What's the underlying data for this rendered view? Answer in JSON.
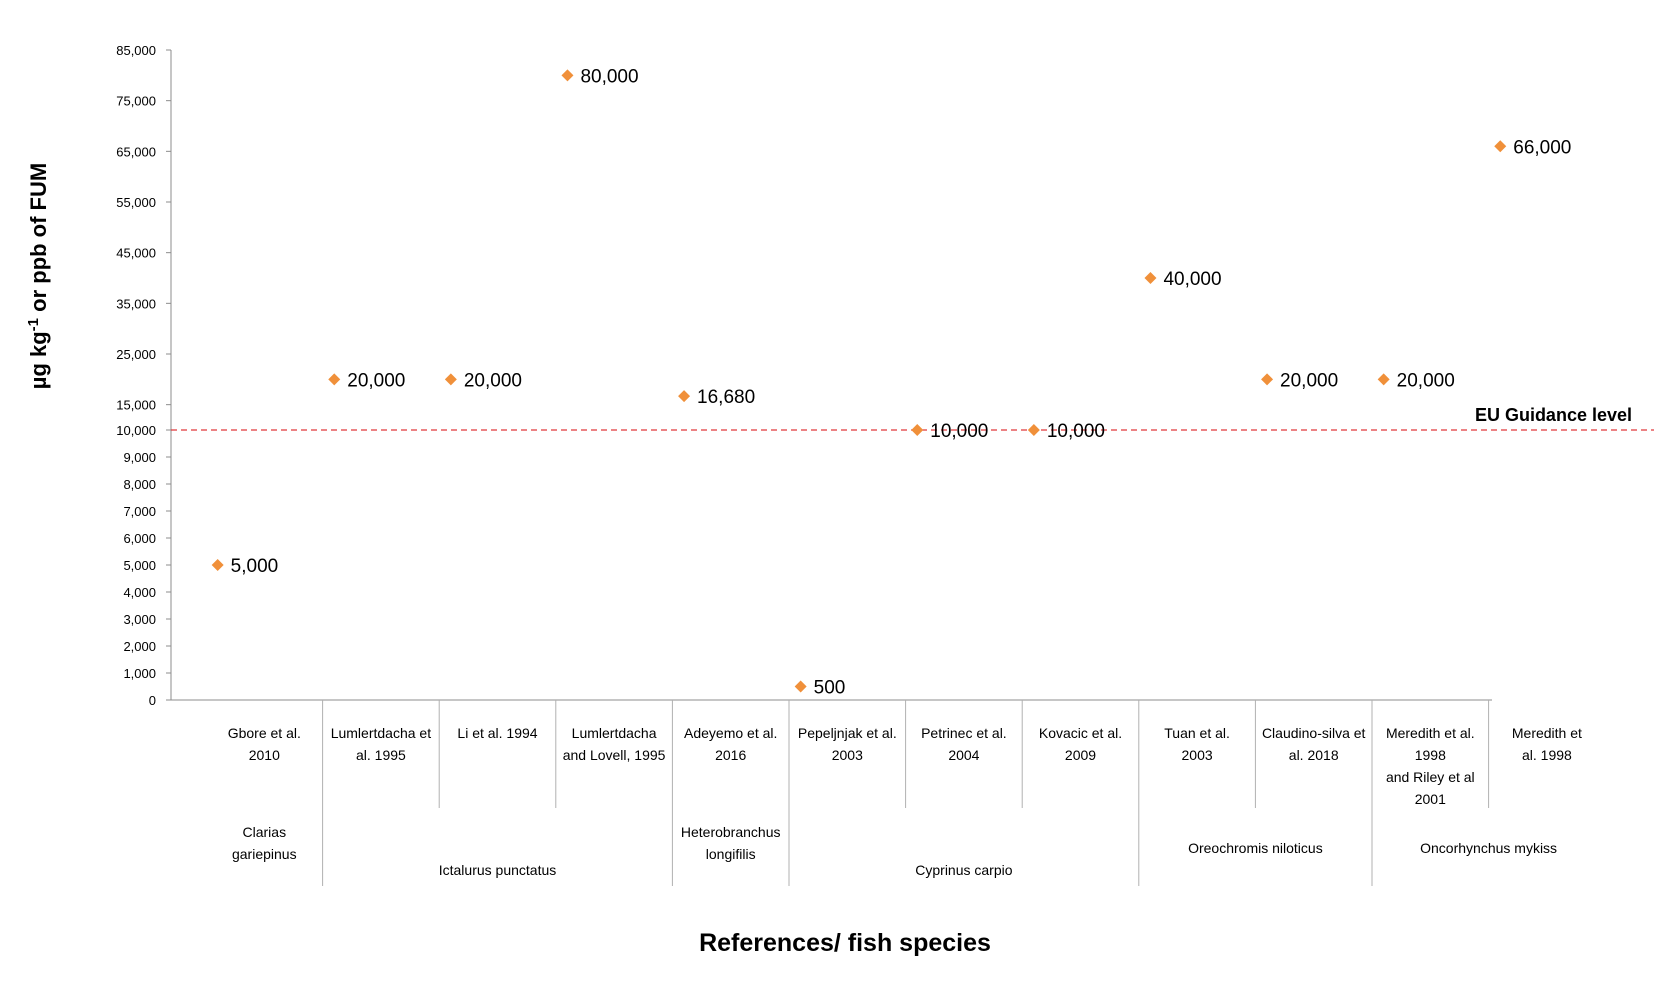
{
  "chart_data": {
    "type": "scatter",
    "ylabel_main": "µg kg",
    "ylabel_sup": "-1",
    "ylabel_rest": " or ppb of FUM",
    "xlabel": "References/ fish species",
    "y_scale": "piecewise: 0–10,000 step 1,000; 10,000–85,000 step 10,000 (15,000 … 85,000)",
    "yticks": [
      "0",
      "1,000",
      "2,000",
      "3,000",
      "4,000",
      "5,000",
      "6,000",
      "7,000",
      "8,000",
      "9,000",
      "10,000",
      "15,000",
      "25,000",
      "35,000",
      "45,000",
      "55,000",
      "65,000",
      "75,000",
      "85,000"
    ],
    "ytick_values": [
      0,
      1000,
      2000,
      3000,
      4000,
      5000,
      6000,
      7000,
      8000,
      9000,
      10000,
      15000,
      25000,
      35000,
      45000,
      55000,
      65000,
      75000,
      85000
    ],
    "categories": [
      [
        "Gbore et al.",
        "2010"
      ],
      [
        "Lumlertdacha et",
        "al. 1995"
      ],
      [
        "Li et al. 1994"
      ],
      [
        "Lumlertdacha",
        "and Lovell, 1995"
      ],
      [
        "Adeyemo et al.",
        "2016"
      ],
      [
        "Pepeljnjak et al.",
        "2003"
      ],
      [
        "Petrinec et al.",
        "2004"
      ],
      [
        "Kovacic et al.",
        "2009"
      ],
      [
        "Tuan et al.",
        "2003"
      ],
      [
        "Claudino-silva et",
        "al. 2018"
      ],
      [
        "Meredith et al.",
        "1998",
        "and Riley et al",
        "2001"
      ],
      [
        "Meredith et",
        "al. 1998"
      ]
    ],
    "species_groups": [
      {
        "lines": [
          "Clarias",
          "gariepinus"
        ],
        "span": [
          0,
          0
        ]
      },
      {
        "lines": [
          "Ictalurus punctatus"
        ],
        "span": [
          1,
          3
        ]
      },
      {
        "lines": [
          "Heterobranchus",
          "longifilis"
        ],
        "span": [
          4,
          4
        ]
      },
      {
        "lines": [
          "Cyprinus carpio"
        ],
        "span": [
          5,
          7
        ]
      },
      {
        "lines": [
          "Oreochromis niloticus"
        ],
        "span": [
          8,
          9
        ]
      },
      {
        "lines": [
          "Oncorhynchus mykiss"
        ],
        "span": [
          10,
          11
        ]
      }
    ],
    "points": [
      {
        "x": 0.1,
        "y": 5000,
        "label": "5,000"
      },
      {
        "x": 1.1,
        "y": 20000,
        "label": "20,000"
      },
      {
        "x": 2.1,
        "y": 20000,
        "label": "20,000"
      },
      {
        "x": 3.1,
        "y": 80000,
        "label": "80,000"
      },
      {
        "x": 4.1,
        "y": 16680,
        "label": "16,680"
      },
      {
        "x": 5.1,
        "y": 500,
        "label": "500"
      },
      {
        "x": 6.1,
        "y": 10000,
        "label": "10,000"
      },
      {
        "x": 7.1,
        "y": 10000,
        "label": "10,000"
      },
      {
        "x": 8.1,
        "y": 40000,
        "label": "40,000"
      },
      {
        "x": 9.1,
        "y": 20000,
        "label": "20,000"
      },
      {
        "x": 10.1,
        "y": 20000,
        "label": "20,000"
      },
      {
        "x": 11.1,
        "y": 66000,
        "label": "66,000"
      }
    ],
    "guidance": {
      "y": 10000,
      "label": "EU Guidance  level",
      "color": "#e0373a"
    },
    "marker_color": "#f0903a",
    "grid": false
  }
}
